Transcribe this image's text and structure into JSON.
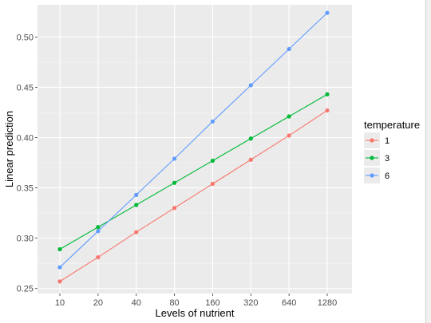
{
  "chart_data": {
    "type": "line",
    "title": "",
    "xlabel": "Levels of nutrient",
    "ylabel": "Linear prediction",
    "categories": [
      "10",
      "20",
      "40",
      "80",
      "160",
      "320",
      "640",
      "1280"
    ],
    "y_ticks": [
      "0.25",
      "0.30",
      "0.35",
      "0.40",
      "0.45",
      "0.50"
    ],
    "ylim": [
      0.245,
      0.532
    ],
    "grid": true,
    "legend": {
      "title": "temperature",
      "position": "right"
    },
    "series": [
      {
        "name": "1",
        "color": "#F8766D",
        "values": [
          0.257,
          0.281,
          0.306,
          0.33,
          0.354,
          0.378,
          0.402,
          0.427
        ]
      },
      {
        "name": "3",
        "color": "#00BA38",
        "values": [
          0.289,
          0.311,
          0.333,
          0.355,
          0.377,
          0.399,
          0.421,
          0.443
        ]
      },
      {
        "name": "6",
        "color": "#619CFF",
        "values": [
          0.271,
          0.307,
          0.343,
          0.379,
          0.416,
          0.452,
          0.488,
          0.524
        ]
      }
    ]
  }
}
